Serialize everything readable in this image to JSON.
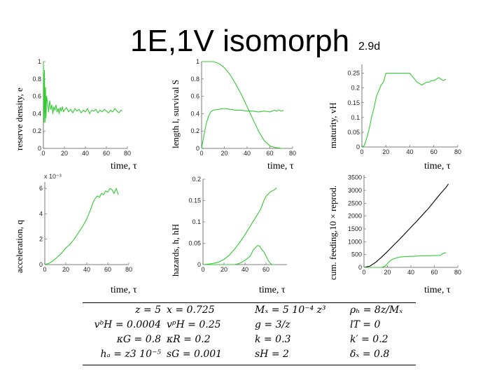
{
  "header": {
    "title": "1E,1V isomorph",
    "subtitle": "2.9d"
  },
  "colors": {
    "series_green": "#33cc33",
    "series_black": "#000000",
    "axis": "#555555"
  },
  "chart_data": [
    {
      "id": "p1",
      "type": "line",
      "ylabel": "reserve density, e",
      "xlabel": "time, τ",
      "xlim": [
        0,
        80
      ],
      "ylim": [
        0,
        1
      ],
      "xticks": [
        "0",
        "20",
        "40",
        "60",
        "80"
      ],
      "yticks": [
        "0",
        "0.2",
        "0.4",
        "0.6",
        "0.8",
        "1"
      ],
      "series": [
        {
          "name": "e",
          "color": "green",
          "x": [
            0,
            0.5,
            1,
            1.5,
            2,
            2.5,
            3,
            4,
            5,
            6,
            7,
            8,
            9,
            10,
            11,
            12,
            13,
            14,
            15,
            16,
            17,
            18,
            19,
            20,
            22,
            24,
            26,
            28,
            30,
            32,
            34,
            36,
            38,
            40,
            42,
            44,
            46,
            48,
            50,
            52,
            54,
            56,
            58,
            60,
            62,
            64,
            66,
            68,
            70,
            72,
            74,
            75
          ],
          "y": [
            1,
            0.3,
            0.9,
            0.3,
            0.7,
            0.35,
            0.6,
            0.52,
            0.42,
            0.55,
            0.45,
            0.5,
            0.4,
            0.48,
            0.44,
            0.5,
            0.42,
            0.46,
            0.4,
            0.47,
            0.43,
            0.48,
            0.42,
            0.44,
            0.47,
            0.42,
            0.45,
            0.41,
            0.46,
            0.43,
            0.45,
            0.41,
            0.44,
            0.42,
            0.46,
            0.4,
            0.44,
            0.43,
            0.45,
            0.41,
            0.44,
            0.42,
            0.45,
            0.43,
            0.41,
            0.44,
            0.42,
            0.46,
            0.43,
            0.41,
            0.44,
            0.43
          ]
        }
      ]
    },
    {
      "id": "p2",
      "type": "line",
      "ylabel": "length l, survival S",
      "xlabel": "time, τ",
      "xlim": [
        0,
        80
      ],
      "ylim": [
        0,
        1
      ],
      "xticks": [
        "0",
        "20",
        "40",
        "60",
        "80"
      ],
      "yticks": [
        "0",
        "0.2",
        "0.4",
        "0.6",
        "0.8",
        "1"
      ],
      "series": [
        {
          "name": "S",
          "color": "green",
          "x": [
            0,
            5,
            10,
            15,
            20,
            25,
            30,
            35,
            40,
            45,
            50,
            55,
            60,
            62,
            65,
            68,
            70,
            72
          ],
          "y": [
            1,
            1,
            1,
            0.98,
            0.93,
            0.85,
            0.74,
            0.62,
            0.48,
            0.34,
            0.2,
            0.09,
            0.03,
            0.02,
            0.01,
            0.005,
            0,
            0
          ]
        },
        {
          "name": "l",
          "color": "green",
          "x": [
            0,
            2,
            4,
            6,
            8,
            10,
            15,
            20,
            25,
            30,
            35,
            40,
            45,
            50,
            55,
            60,
            62,
            64,
            66,
            68,
            70,
            72
          ],
          "y": [
            0,
            0.15,
            0.28,
            0.37,
            0.42,
            0.44,
            0.45,
            0.46,
            0.45,
            0.44,
            0.44,
            0.43,
            0.43,
            0.42,
            0.43,
            0.42,
            0.43,
            0.44,
            0.43,
            0.44,
            0.43,
            0.44
          ]
        }
      ]
    },
    {
      "id": "p3",
      "type": "line",
      "ylabel": "maturity, vH",
      "xlabel": "time, τ",
      "xlim": [
        0,
        80
      ],
      "ylim": [
        0,
        0.28
      ],
      "xticks": [
        "0",
        "20",
        "40",
        "60",
        "80"
      ],
      "yticks": [
        "0",
        "0.05",
        "0.1",
        "0.15",
        "0.2",
        "0.25"
      ],
      "series": [
        {
          "name": "vH",
          "color": "green",
          "x": [
            0,
            2,
            4,
            6,
            8,
            10,
            12,
            14,
            16,
            18,
            20,
            25,
            30,
            35,
            40,
            42,
            44,
            46,
            48,
            50,
            52,
            54,
            56,
            58,
            60,
            62,
            64,
            66,
            68,
            70
          ],
          "y": [
            0,
            0.005,
            0.03,
            0.06,
            0.1,
            0.13,
            0.17,
            0.19,
            0.21,
            0.22,
            0.25,
            0.25,
            0.25,
            0.25,
            0.25,
            0.24,
            0.23,
            0.22,
            0.215,
            0.21,
            0.215,
            0.22,
            0.22,
            0.225,
            0.225,
            0.23,
            0.235,
            0.23,
            0.225,
            0.23
          ]
        }
      ]
    },
    {
      "id": "p4",
      "type": "line",
      "ylabel": "acceleration, q",
      "xlabel": "time, τ",
      "xlim": [
        0,
        80
      ],
      "ylim": [
        0,
        0.0065
      ],
      "exponent_label": "x 10⁻³",
      "xticks": [
        "0",
        "20",
        "40",
        "60",
        "80"
      ],
      "yticks": [
        "0",
        "2",
        "4",
        "6"
      ],
      "series": [
        {
          "name": "q",
          "color": "green",
          "x": [
            0,
            4,
            8,
            12,
            16,
            18,
            20,
            24,
            28,
            32,
            36,
            40,
            42,
            44,
            46,
            48,
            50,
            52,
            54,
            56,
            58,
            60,
            62,
            64,
            66,
            68,
            70
          ],
          "y": [
            0,
            0.0001,
            0.0003,
            0.0006,
            0.0009,
            0.0011,
            0.0013,
            0.0016,
            0.002,
            0.0025,
            0.003,
            0.0036,
            0.004,
            0.0044,
            0.0049,
            0.0052,
            0.0054,
            0.0053,
            0.0056,
            0.0055,
            0.0058,
            0.0057,
            0.006,
            0.0059,
            0.0056,
            0.006,
            0.0055
          ]
        }
      ]
    },
    {
      "id": "p5",
      "type": "line",
      "ylabel": "hazards, h, hH",
      "xlabel": "time, τ",
      "xlim": [
        0,
        80
      ],
      "ylim": [
        0,
        0.2
      ],
      "xticks": [
        "0",
        "20",
        "40",
        "60"
      ],
      "yticks": [
        "0",
        "0.05",
        "0.1",
        "0.15",
        "0.2"
      ],
      "series": [
        {
          "name": "h",
          "color": "green",
          "x": [
            0,
            5,
            10,
            15,
            20,
            25,
            30,
            35,
            40,
            45,
            50,
            55,
            58,
            60,
            62,
            64,
            66,
            68,
            70
          ],
          "y": [
            0,
            0.001,
            0.003,
            0.006,
            0.012,
            0.022,
            0.036,
            0.052,
            0.07,
            0.09,
            0.11,
            0.13,
            0.15,
            0.16,
            0.165,
            0.17,
            0.173,
            0.175,
            0.18
          ]
        },
        {
          "name": "hH",
          "color": "green",
          "x": [
            0,
            20,
            30,
            35,
            40,
            45,
            48,
            50,
            52,
            54,
            56,
            58,
            60,
            62,
            64,
            66,
            68
          ],
          "y": [
            0,
            0,
            0,
            0.003,
            0.01,
            0.02,
            0.035,
            0.04,
            0.045,
            0.043,
            0.035,
            0.03,
            0.02,
            0.01,
            0.003,
            0,
            0
          ]
        }
      ]
    },
    {
      "id": "p6",
      "type": "line",
      "ylabel": "cum. feeding,10 × reprod.",
      "xlabel": "time, τ",
      "xlim": [
        0,
        80
      ],
      "ylim": [
        0,
        3600
      ],
      "xticks": [
        "0",
        "20",
        "40",
        "60",
        "80"
      ],
      "yticks": [
        "0",
        "500",
        "1000",
        "1500",
        "2000",
        "2500",
        "3000",
        "3500"
      ],
      "series": [
        {
          "name": "feeding",
          "color": "black",
          "x": [
            0,
            5,
            10,
            15,
            20,
            25,
            30,
            35,
            40,
            45,
            50,
            55,
            60,
            65,
            68,
            70,
            72
          ],
          "y": [
            0,
            50,
            200,
            400,
            620,
            850,
            1080,
            1320,
            1560,
            1800,
            2050,
            2300,
            2580,
            2860,
            3020,
            3120,
            3250
          ]
        },
        {
          "name": "10 × reprod.",
          "color": "green",
          "x": [
            0,
            10,
            15,
            18,
            20,
            22,
            25,
            30,
            35,
            40,
            45,
            50,
            55,
            60,
            65,
            68,
            70
          ],
          "y": [
            0,
            0,
            0,
            50,
            150,
            250,
            330,
            400,
            420,
            430,
            440,
            450,
            450,
            460,
            470,
            560,
            570
          ]
        }
      ]
    }
  ],
  "params": {
    "rows": [
      [
        "z = 5",
        "x = 0.725",
        "Mₓ = 5 10⁻⁴ z³",
        "ρₕ = 8z/Mₓ"
      ],
      [
        "vᵇH = 0.0004",
        "vᵖH = 0.25",
        "g = 3/z",
        "lT = 0"
      ],
      [
        "κG = 0.8",
        "κR = 0.2",
        "k = 0.3",
        "k′ = 0.2"
      ],
      [
        "hₐ = z3 10⁻⁵",
        "sG = 0.001",
        "sH = 2",
        "δₓ = 0.8"
      ]
    ]
  }
}
